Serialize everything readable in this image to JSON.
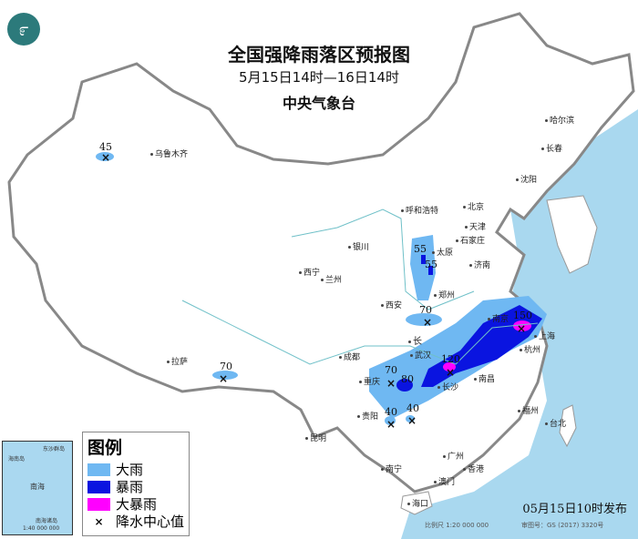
{
  "header": {
    "title": "全国强降雨落区预报图",
    "period": "5月15日14时—16日14时",
    "issuer": "中央气象台"
  },
  "colors": {
    "heavy_rain": "#6fb8f2",
    "rainstorm": "#0a14e0",
    "heavy_rainstorm": "#ff00ff",
    "sea": "#a9d8ef"
  },
  "legend": {
    "title": "图例",
    "items": [
      {
        "label": "大雨",
        "color": "#6fb8f2"
      },
      {
        "label": "暴雨",
        "color": "#0a14e0"
      },
      {
        "label": "大暴雨",
        "color": "#ff00ff"
      },
      {
        "label": "降水中心值",
        "icon": "x-mark-icon"
      }
    ]
  },
  "inset": {
    "sea_label": "南海",
    "island_labels": [
      "东沙群岛",
      "海南岛"
    ],
    "scale": "1:40 000 000",
    "islands_name": "南海诸岛"
  },
  "centers": [
    "45",
    "70",
    "55",
    "55",
    "70",
    "150",
    "120",
    "80",
    "70",
    "40",
    "40"
  ],
  "cities": [
    "乌鲁木齐",
    "哈尔滨",
    "长春",
    "沈阳",
    "呼和浩特",
    "北京",
    "天津",
    "石家庄",
    "太原",
    "济南",
    "银川",
    "西宁",
    "兰州",
    "郑州",
    "西安",
    "南京",
    "上海",
    "杭州",
    "武汉",
    "长沙",
    "南昌",
    "成都",
    "重庆",
    "贵阳",
    "昆明",
    "拉萨",
    "南宁",
    "广州",
    "香港",
    "澳门",
    "海口",
    "福州",
    "台北"
  ],
  "river_label": "长",
  "footer": {
    "published": "05月15日10时发布",
    "scale": "比例尺 1:20 000 000",
    "review_no": "审图号：GS (2017) 3320号"
  }
}
